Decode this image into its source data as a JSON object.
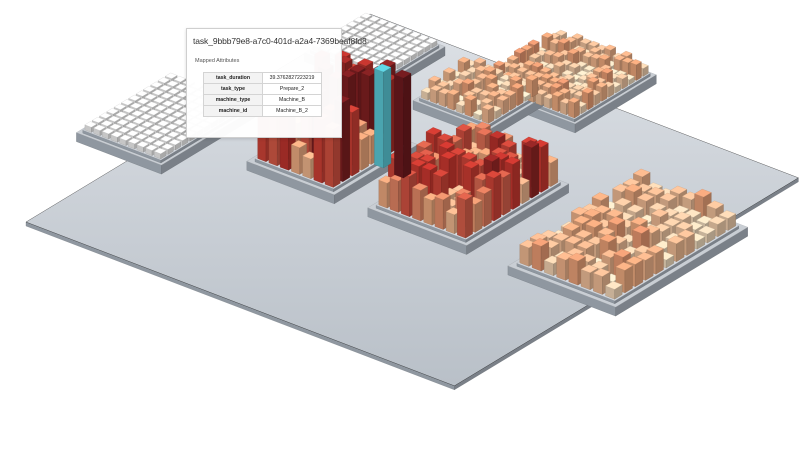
{
  "tooltip": {
    "title": "task_9bbb79e8-a7c0-401d-a2a4-7369beaf8fd8",
    "section_label": "Mapped Attributes",
    "attributes": [
      {
        "key": "task_duration",
        "value": "39.3762827223219"
      },
      {
        "key": "task_type",
        "value": "Prepare_2"
      },
      {
        "key": "machine_type",
        "value": "Machine_B"
      },
      {
        "key": "machine_id",
        "value": "Machine_B_2"
      }
    ]
  },
  "colors": {
    "background": "#ffffff",
    "platform_top": "#c9ced4",
    "platform_side": "#8f97a0",
    "idle_box": "#f1f1f1",
    "highlight": "#5ac8d6",
    "heat_low": "#f3e4c8",
    "heat_mid": "#eaa57a",
    "heat_high": "#c9372f",
    "heat_max": "#6e1a1e"
  }
}
